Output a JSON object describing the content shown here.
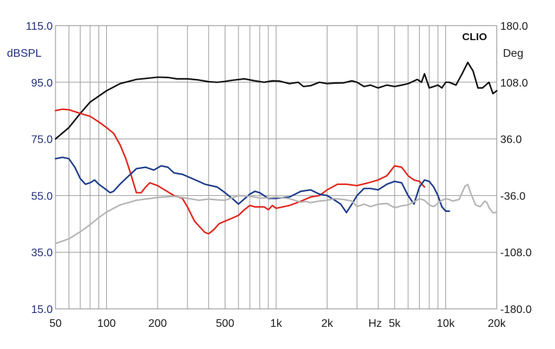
{
  "chart_data": {
    "type": "line",
    "brand": "CLIO",
    "left_axis": {
      "unit": "dBSPL",
      "ylim": [
        15,
        115
      ],
      "ticks": [
        "115.0",
        "95.0",
        "75.0",
        "55.0",
        "35.0",
        "15.0"
      ]
    },
    "right_axis": {
      "unit": "Deg",
      "ylim": [
        -180,
        180
      ],
      "ticks": [
        "180.0",
        "108.0",
        "36.0",
        "-36.0",
        "-108.0",
        "-180.0"
      ]
    },
    "x_axis": {
      "scale": "log",
      "xlim": [
        50,
        20000
      ],
      "unit_label": "Hz",
      "ticks": [
        {
          "value": 50,
          "label": "50"
        },
        {
          "value": 100,
          "label": "100"
        },
        {
          "value": 200,
          "label": "200"
        },
        {
          "value": 500,
          "label": "500"
        },
        {
          "value": 1000,
          "label": "1k"
        },
        {
          "value": 2000,
          "label": "2k"
        },
        {
          "value": 5000,
          "label": "5k"
        },
        {
          "value": 10000,
          "label": "10k"
        },
        {
          "value": 20000,
          "label": "20k"
        }
      ]
    },
    "grid": true,
    "series": [
      {
        "color": "#111111",
        "axis": "left",
        "points": [
          [
            50,
            75
          ],
          [
            60,
            79
          ],
          [
            70,
            84
          ],
          [
            80,
            88
          ],
          [
            100,
            92
          ],
          [
            120,
            94.5
          ],
          [
            150,
            96
          ],
          [
            180,
            96.5
          ],
          [
            200,
            96.8
          ],
          [
            230,
            96.7
          ],
          [
            260,
            96.2
          ],
          [
            300,
            96.2
          ],
          [
            350,
            95.8
          ],
          [
            400,
            95.2
          ],
          [
            450,
            95
          ],
          [
            500,
            95.3
          ],
          [
            550,
            95.7
          ],
          [
            650,
            96.2
          ],
          [
            750,
            95.5
          ],
          [
            850,
            95
          ],
          [
            950,
            95.5
          ],
          [
            1050,
            95.4
          ],
          [
            1200,
            94.5
          ],
          [
            1350,
            95
          ],
          [
            1450,
            93.5
          ],
          [
            1600,
            93.8
          ],
          [
            1800,
            95
          ],
          [
            2000,
            94.5
          ],
          [
            2200,
            94.7
          ],
          [
            2500,
            94.8
          ],
          [
            2800,
            95.5
          ],
          [
            3000,
            95
          ],
          [
            3300,
            93.5
          ],
          [
            3600,
            94
          ],
          [
            4000,
            93
          ],
          [
            4500,
            94
          ],
          [
            5000,
            93.5
          ],
          [
            5500,
            94
          ],
          [
            6000,
            94.5
          ],
          [
            6800,
            96
          ],
          [
            7200,
            95
          ],
          [
            7500,
            98
          ],
          [
            8000,
            93
          ],
          [
            8500,
            93.5
          ],
          [
            9000,
            94
          ],
          [
            9500,
            93
          ],
          [
            10000,
            95
          ],
          [
            10500,
            95
          ],
          [
            11500,
            94
          ],
          [
            12500,
            98
          ],
          [
            13500,
            102
          ],
          [
            14500,
            99
          ],
          [
            15500,
            93
          ],
          [
            16500,
            93
          ],
          [
            18000,
            95
          ],
          [
            19000,
            91
          ],
          [
            20000,
            92
          ]
        ]
      },
      {
        "color": "#e0261c",
        "axis": "left",
        "points": [
          [
            50,
            85
          ],
          [
            55,
            85.5
          ],
          [
            60,
            85.3
          ],
          [
            70,
            84
          ],
          [
            80,
            83
          ],
          [
            90,
            81
          ],
          [
            100,
            79
          ],
          [
            110,
            77
          ],
          [
            120,
            73
          ],
          [
            130,
            68
          ],
          [
            140,
            62
          ],
          [
            150,
            56
          ],
          [
            160,
            56
          ],
          [
            170,
            58
          ],
          [
            180,
            59.5
          ],
          [
            200,
            58.5
          ],
          [
            220,
            57
          ],
          [
            250,
            55
          ],
          [
            280,
            54
          ],
          [
            300,
            51
          ],
          [
            330,
            46
          ],
          [
            360,
            43.5
          ],
          [
            380,
            42
          ],
          [
            400,
            41.5
          ],
          [
            430,
            43
          ],
          [
            460,
            45
          ],
          [
            500,
            46
          ],
          [
            550,
            47
          ],
          [
            600,
            48
          ],
          [
            650,
            50
          ],
          [
            700,
            51.5
          ],
          [
            750,
            51
          ],
          [
            850,
            51
          ],
          [
            900,
            50
          ],
          [
            950,
            51.5
          ],
          [
            1000,
            50.5
          ],
          [
            1200,
            51.5
          ],
          [
            1400,
            53
          ],
          [
            1600,
            54.5
          ],
          [
            1800,
            55
          ],
          [
            2000,
            57
          ],
          [
            2300,
            59
          ],
          [
            2600,
            59
          ],
          [
            3000,
            58.5
          ],
          [
            3500,
            59.5
          ],
          [
            4000,
            60.5
          ],
          [
            4500,
            62
          ],
          [
            5000,
            65.5
          ],
          [
            5500,
            65
          ],
          [
            6000,
            62
          ],
          [
            6500,
            60.5
          ],
          [
            7000,
            60
          ],
          [
            7500,
            58
          ]
        ]
      },
      {
        "color": "#1c3a8a",
        "axis": "left",
        "points": [
          [
            50,
            68
          ],
          [
            55,
            68.5
          ],
          [
            60,
            68
          ],
          [
            65,
            65
          ],
          [
            70,
            61
          ],
          [
            75,
            59
          ],
          [
            80,
            59.5
          ],
          [
            85,
            60.5
          ],
          [
            90,
            59
          ],
          [
            100,
            57
          ],
          [
            105,
            56
          ],
          [
            110,
            56.5
          ],
          [
            120,
            59
          ],
          [
            130,
            61
          ],
          [
            150,
            64.5
          ],
          [
            170,
            65
          ],
          [
            190,
            64
          ],
          [
            210,
            65.5
          ],
          [
            230,
            65
          ],
          [
            250,
            63
          ],
          [
            280,
            62.5
          ],
          [
            320,
            61
          ],
          [
            350,
            60
          ],
          [
            380,
            59
          ],
          [
            450,
            58
          ],
          [
            500,
            56
          ],
          [
            550,
            54
          ],
          [
            600,
            52
          ],
          [
            700,
            55.5
          ],
          [
            750,
            56.5
          ],
          [
            800,
            56
          ],
          [
            900,
            54
          ],
          [
            1000,
            54
          ],
          [
            1200,
            54.5
          ],
          [
            1400,
            56.5
          ],
          [
            1600,
            57
          ],
          [
            1800,
            55.5
          ],
          [
            2000,
            55
          ],
          [
            2200,
            53.5
          ],
          [
            2400,
            52
          ],
          [
            2600,
            49
          ],
          [
            2800,
            52
          ],
          [
            3000,
            55
          ],
          [
            3300,
            57.5
          ],
          [
            3600,
            57.5
          ],
          [
            4000,
            57
          ],
          [
            4500,
            59
          ],
          [
            5000,
            60
          ],
          [
            5500,
            59.5
          ],
          [
            6000,
            55
          ],
          [
            6500,
            52
          ],
          [
            7000,
            58
          ],
          [
            7500,
            60.5
          ],
          [
            8000,
            60
          ],
          [
            8500,
            58
          ],
          [
            9000,
            55
          ],
          [
            9500,
            51
          ],
          [
            10000,
            49.5
          ],
          [
            10500,
            49.5
          ]
        ]
      },
      {
        "color": "#b5b5b5",
        "axis": "right",
        "points": [
          [
            50,
            -97
          ],
          [
            60,
            -91
          ],
          [
            70,
            -82
          ],
          [
            80,
            -73
          ],
          [
            90,
            -64
          ],
          [
            100,
            -57
          ],
          [
            120,
            -48
          ],
          [
            150,
            -42
          ],
          [
            200,
            -38.5
          ],
          [
            250,
            -37
          ],
          [
            300,
            -39.5
          ],
          [
            350,
            -42
          ],
          [
            400,
            -40.5
          ],
          [
            450,
            -41.5
          ],
          [
            500,
            -42
          ],
          [
            600,
            -36
          ],
          [
            700,
            -37
          ],
          [
            800,
            -39
          ],
          [
            900,
            -39
          ],
          [
            1000,
            -38
          ],
          [
            1200,
            -40
          ],
          [
            1400,
            -44.5
          ],
          [
            1500,
            -43.5
          ],
          [
            1600,
            -45
          ],
          [
            1800,
            -43
          ],
          [
            2000,
            -42
          ],
          [
            2200,
            -40
          ],
          [
            2500,
            -41
          ],
          [
            2800,
            -43
          ],
          [
            3000,
            -50
          ],
          [
            3300,
            -47
          ],
          [
            3600,
            -50
          ],
          [
            4000,
            -47
          ],
          [
            4500,
            -46
          ],
          [
            5000,
            -51.5
          ],
          [
            5500,
            -49
          ],
          [
            6000,
            -48
          ],
          [
            6500,
            -44
          ],
          [
            7000,
            -40
          ],
          [
            7500,
            -42
          ],
          [
            8000,
            -48
          ],
          [
            8500,
            -50
          ],
          [
            9000,
            -46
          ],
          [
            9500,
            -42
          ],
          [
            10000,
            -40
          ],
          [
            10500,
            -41
          ],
          [
            11000,
            -43
          ],
          [
            12000,
            -41
          ],
          [
            13000,
            -24
          ],
          [
            13500,
            -22
          ],
          [
            14000,
            -32
          ],
          [
            15000,
            -48
          ],
          [
            16000,
            -50
          ],
          [
            17000,
            -43
          ],
          [
            17500,
            -45
          ],
          [
            18000,
            -51
          ],
          [
            19000,
            -58
          ],
          [
            20000,
            -57
          ]
        ]
      }
    ]
  }
}
